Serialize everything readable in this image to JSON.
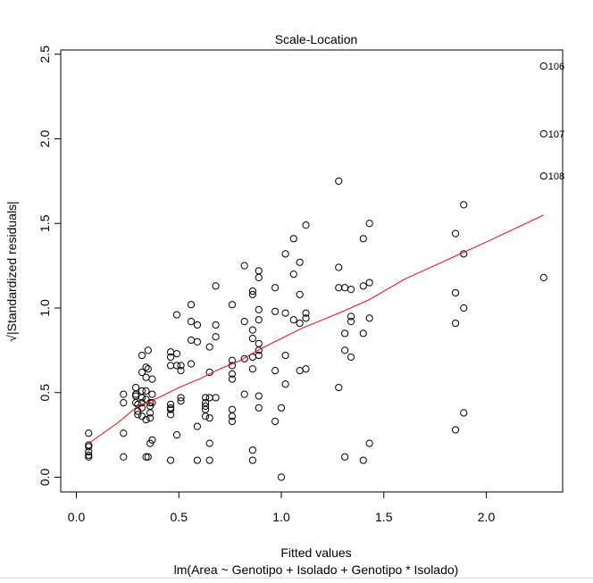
{
  "chart_data": {
    "type": "scatter",
    "title": "Scale-Location",
    "xlabel": "Fitted values",
    "subtitle": "lm(Area ~ Genotipo + Isolado + Genotipo * Isolado)",
    "ylabel": "√|Standardized residuals|",
    "xlim": [
      0.0,
      2.3
    ],
    "ylim": [
      0.0,
      2.5
    ],
    "xticks": [
      0.0,
      0.5,
      1.0,
      1.5,
      2.0
    ],
    "xtick_labels": [
      "0.0",
      "0.5",
      "1.0",
      "1.5",
      "2.0"
    ],
    "yticks": [
      0.0,
      0.5,
      1.0,
      1.5,
      2.0,
      2.5
    ],
    "ytick_labels": [
      "0.0",
      "0.5",
      "1.0",
      "1.5",
      "2.0",
      "2.5"
    ],
    "grid": false,
    "point_color": "#000000",
    "smooth_color": "#ff0000",
    "points": [
      [
        0.06,
        0.26
      ],
      [
        0.06,
        0.19
      ],
      [
        0.06,
        0.18
      ],
      [
        0.06,
        0.15
      ],
      [
        0.06,
        0.13
      ],
      [
        0.06,
        0.12
      ],
      [
        0.23,
        0.49
      ],
      [
        0.23,
        0.44
      ],
      [
        0.23,
        0.26
      ],
      [
        0.23,
        0.12
      ],
      [
        0.29,
        0.53
      ],
      [
        0.29,
        0.49
      ],
      [
        0.29,
        0.48
      ],
      [
        0.29,
        0.44
      ],
      [
        0.3,
        0.43
      ],
      [
        0.3,
        0.39
      ],
      [
        0.3,
        0.37
      ],
      [
        0.32,
        0.72
      ],
      [
        0.32,
        0.62
      ],
      [
        0.32,
        0.51
      ],
      [
        0.32,
        0.47
      ],
      [
        0.32,
        0.44
      ],
      [
        0.32,
        0.41
      ],
      [
        0.32,
        0.36
      ],
      [
        0.34,
        0.65
      ],
      [
        0.34,
        0.59
      ],
      [
        0.34,
        0.51
      ],
      [
        0.34,
        0.46
      ],
      [
        0.34,
        0.34
      ],
      [
        0.34,
        0.12
      ],
      [
        0.35,
        0.75
      ],
      [
        0.35,
        0.64
      ],
      [
        0.35,
        0.12
      ],
      [
        0.36,
        0.44
      ],
      [
        0.36,
        0.42
      ],
      [
        0.36,
        0.38
      ],
      [
        0.36,
        0.35
      ],
      [
        0.36,
        0.2
      ],
      [
        0.37,
        0.58
      ],
      [
        0.37,
        0.49
      ],
      [
        0.37,
        0.44
      ],
      [
        0.37,
        0.22
      ],
      [
        0.46,
        0.74
      ],
      [
        0.46,
        0.71
      ],
      [
        0.46,
        0.66
      ],
      [
        0.46,
        0.43
      ],
      [
        0.46,
        0.41
      ],
      [
        0.46,
        0.4
      ],
      [
        0.46,
        0.37
      ],
      [
        0.46,
        0.1
      ],
      [
        0.49,
        0.96
      ],
      [
        0.49,
        0.73
      ],
      [
        0.49,
        0.66
      ],
      [
        0.49,
        0.25
      ],
      [
        0.51,
        0.66
      ],
      [
        0.51,
        0.63
      ],
      [
        0.51,
        0.47
      ],
      [
        0.51,
        0.45
      ],
      [
        0.56,
        1.02
      ],
      [
        0.56,
        0.92
      ],
      [
        0.56,
        0.81
      ],
      [
        0.56,
        0.67
      ],
      [
        0.59,
        0.9
      ],
      [
        0.59,
        0.8
      ],
      [
        0.59,
        0.3
      ],
      [
        0.59,
        0.1
      ],
      [
        0.63,
        0.47
      ],
      [
        0.63,
        0.44
      ],
      [
        0.63,
        0.42
      ],
      [
        0.63,
        0.4
      ],
      [
        0.63,
        0.36
      ],
      [
        0.65,
        0.77
      ],
      [
        0.65,
        0.62
      ],
      [
        0.65,
        0.47
      ],
      [
        0.65,
        0.35
      ],
      [
        0.65,
        0.2
      ],
      [
        0.65,
        0.1
      ],
      [
        0.68,
        1.13
      ],
      [
        0.68,
        0.9
      ],
      [
        0.68,
        0.83
      ],
      [
        0.68,
        0.47
      ],
      [
        0.76,
        1.02
      ],
      [
        0.76,
        0.69
      ],
      [
        0.76,
        0.66
      ],
      [
        0.76,
        0.61
      ],
      [
        0.76,
        0.58
      ],
      [
        0.76,
        0.4
      ],
      [
        0.76,
        0.36
      ],
      [
        0.76,
        0.33
      ],
      [
        0.82,
        1.25
      ],
      [
        0.82,
        0.92
      ],
      [
        0.82,
        0.7
      ],
      [
        0.82,
        0.49
      ],
      [
        0.86,
        1.1
      ],
      [
        0.86,
        1.08
      ],
      [
        0.86,
        0.87
      ],
      [
        0.86,
        0.82
      ],
      [
        0.86,
        0.71
      ],
      [
        0.86,
        0.64
      ],
      [
        0.86,
        0.16
      ],
      [
        0.86,
        0.1
      ],
      [
        0.89,
        1.22
      ],
      [
        0.89,
        1.18
      ],
      [
        0.89,
        0.99
      ],
      [
        0.89,
        0.93
      ],
      [
        0.89,
        0.79
      ],
      [
        0.89,
        0.75
      ],
      [
        0.89,
        0.72
      ],
      [
        0.89,
        0.48
      ],
      [
        0.89,
        0.41
      ],
      [
        0.97,
        1.12
      ],
      [
        0.97,
        0.98
      ],
      [
        0.97,
        0.63
      ],
      [
        0.97,
        0.33
      ],
      [
        1.0,
        0.41
      ],
      [
        1.0,
        0.0
      ],
      [
        1.02,
        1.32
      ],
      [
        1.02,
        0.97
      ],
      [
        1.02,
        0.72
      ],
      [
        1.02,
        0.55
      ],
      [
        1.06,
        1.41
      ],
      [
        1.06,
        1.2
      ],
      [
        1.06,
        0.93
      ],
      [
        1.09,
        1.27
      ],
      [
        1.09,
        1.08
      ],
      [
        1.09,
        0.91
      ],
      [
        1.09,
        0.63
      ],
      [
        1.12,
        1.49
      ],
      [
        1.12,
        0.97
      ],
      [
        1.12,
        0.94
      ],
      [
        1.12,
        0.64
      ],
      [
        1.28,
        1.75
      ],
      [
        1.28,
        1.24
      ],
      [
        1.28,
        1.12
      ],
      [
        1.28,
        0.53
      ],
      [
        1.31,
        1.12
      ],
      [
        1.31,
        0.85
      ],
      [
        1.31,
        0.75
      ],
      [
        1.31,
        0.12
      ],
      [
        1.34,
        1.11
      ],
      [
        1.34,
        0.95
      ],
      [
        1.34,
        0.92
      ],
      [
        1.34,
        0.71
      ],
      [
        1.4,
        1.41
      ],
      [
        1.4,
        1.13
      ],
      [
        1.4,
        0.85
      ],
      [
        1.4,
        0.1
      ],
      [
        1.43,
        1.5
      ],
      [
        1.43,
        1.15
      ],
      [
        1.43,
        0.94
      ],
      [
        1.43,
        0.2
      ],
      [
        1.85,
        1.44
      ],
      [
        1.85,
        1.09
      ],
      [
        1.85,
        0.91
      ],
      [
        1.85,
        0.28
      ],
      [
        1.89,
        1.61
      ],
      [
        1.89,
        1.32
      ],
      [
        1.89,
        1.0
      ],
      [
        1.89,
        0.38
      ],
      [
        2.28,
        2.43
      ],
      [
        2.28,
        2.03
      ],
      [
        2.28,
        1.78
      ],
      [
        2.28,
        1.18
      ]
    ],
    "smooth_line": [
      [
        0.06,
        0.2
      ],
      [
        0.2,
        0.32
      ],
      [
        0.3,
        0.42
      ],
      [
        0.4,
        0.47
      ],
      [
        0.5,
        0.53
      ],
      [
        0.6,
        0.58
      ],
      [
        0.7,
        0.64
      ],
      [
        0.8,
        0.69
      ],
      [
        0.9,
        0.76
      ],
      [
        1.0,
        0.82
      ],
      [
        1.1,
        0.88
      ],
      [
        1.2,
        0.93
      ],
      [
        1.3,
        0.98
      ],
      [
        1.43,
        1.05
      ],
      [
        1.6,
        1.17
      ],
      [
        1.8,
        1.28
      ],
      [
        2.0,
        1.39
      ],
      [
        2.28,
        1.55
      ]
    ],
    "annotations": [
      {
        "label": "106",
        "x": 2.28,
        "y": 2.43
      },
      {
        "label": "107",
        "x": 2.28,
        "y": 2.03
      },
      {
        "label": "108",
        "x": 2.28,
        "y": 1.78
      }
    ]
  }
}
